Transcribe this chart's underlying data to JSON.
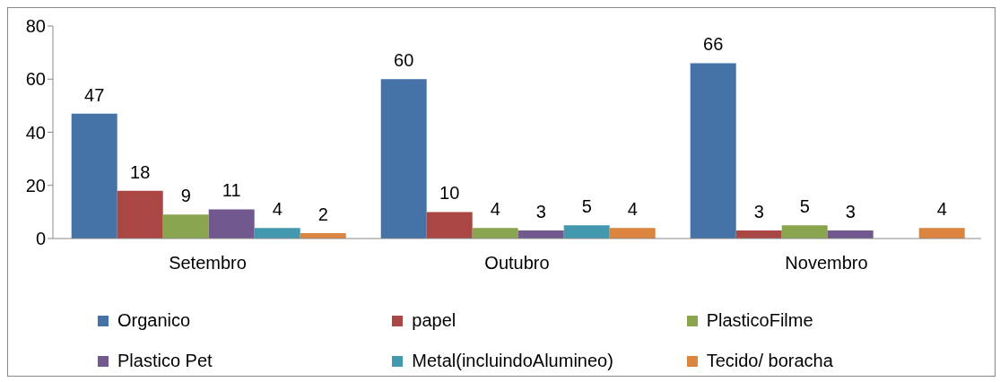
{
  "chart_data": {
    "type": "bar",
    "categories": [
      "Setembro",
      "Outubro",
      "Novembro"
    ],
    "series": [
      {
        "name": "Organico",
        "color": "#4572a7",
        "values": [
          47,
          60,
          66
        ]
      },
      {
        "name": "papel",
        "color": "#aa4643",
        "values": [
          18,
          10,
          3
        ]
      },
      {
        "name": "PlasticoFilme",
        "color": "#89a54e",
        "values": [
          9,
          4,
          5
        ]
      },
      {
        "name": "Plastico Pet",
        "color": "#71588f",
        "values": [
          11,
          3,
          3
        ]
      },
      {
        "name": "Metal(incluindoAlumineo)",
        "color": "#4198af",
        "values": [
          4,
          5,
          null
        ]
      },
      {
        "name": "Tecido/ boracha",
        "color": "#db843d",
        "values": [
          2,
          4,
          4
        ]
      }
    ],
    "ylim": [
      0,
      80
    ],
    "yticks": [
      0,
      20,
      40,
      60,
      80
    ],
    "grid": false,
    "data_labels": true,
    "legend": "bottom"
  }
}
